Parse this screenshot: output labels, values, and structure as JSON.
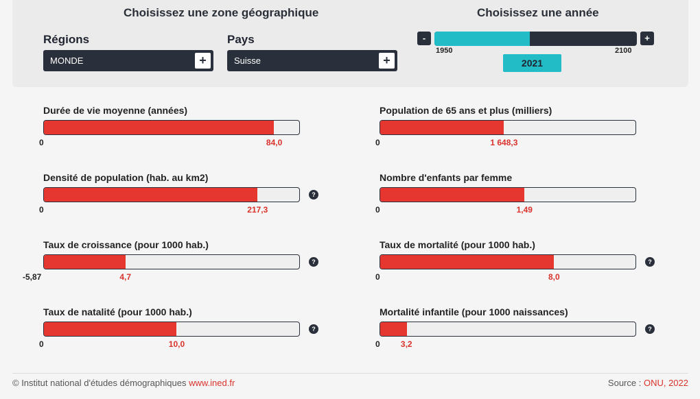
{
  "zone": {
    "title": "Choisissez une zone géographique",
    "regions_label": "Régions",
    "regions_value": "MONDE",
    "pays_label": "Pays",
    "pays_value": "Suisse",
    "plus": "+"
  },
  "year": {
    "title": "Choisissez une année",
    "minus": "-",
    "plus": "+",
    "start": "1950",
    "end": "2100",
    "current": "2021",
    "progress": 0.47
  },
  "indicators": [
    {
      "title": "Durée de vie moyenne (années)",
      "min": "0",
      "value": "84,0",
      "fraction": 0.9,
      "help": ""
    },
    {
      "title": "Population de 65 ans et plus (milliers)",
      "min": "0",
      "value": "1 648,3",
      "fraction": 0.485,
      "help": ""
    },
    {
      "title": "Densité de population (hab. au km2)",
      "min": "0",
      "value": "217,3",
      "fraction": 0.835,
      "help": "?"
    },
    {
      "title": "Nombre d'enfants par femme",
      "min": "0",
      "value": "1,49",
      "fraction": 0.565,
      "help": ""
    },
    {
      "title": "Taux de croissance (pour 1000 hab.)",
      "min": "-5,87",
      "value": "4,7",
      "fraction": 0.32,
      "help": "?"
    },
    {
      "title": "Taux de mortalité (pour 1000 hab.)",
      "min": "0",
      "value": "8,0",
      "fraction": 0.68,
      "help": "?"
    },
    {
      "title": "Taux de natalité (pour 1000 hab.)",
      "min": "0",
      "value": "10,0",
      "fraction": 0.52,
      "help": "?"
    },
    {
      "title": "Mortalité infantile (pour 1000 naissances)",
      "min": "0",
      "value": "3,2",
      "fraction": 0.105,
      "help": "?"
    }
  ],
  "footer": {
    "copyright": "© Institut national d'études démographiques",
    "link": "www.ined.fr",
    "source_label": "Source : ",
    "source_link": "ONU, 2022"
  },
  "colors": {
    "accent": "#e53730",
    "teal": "#22bcc6",
    "dark": "#2a303b"
  }
}
